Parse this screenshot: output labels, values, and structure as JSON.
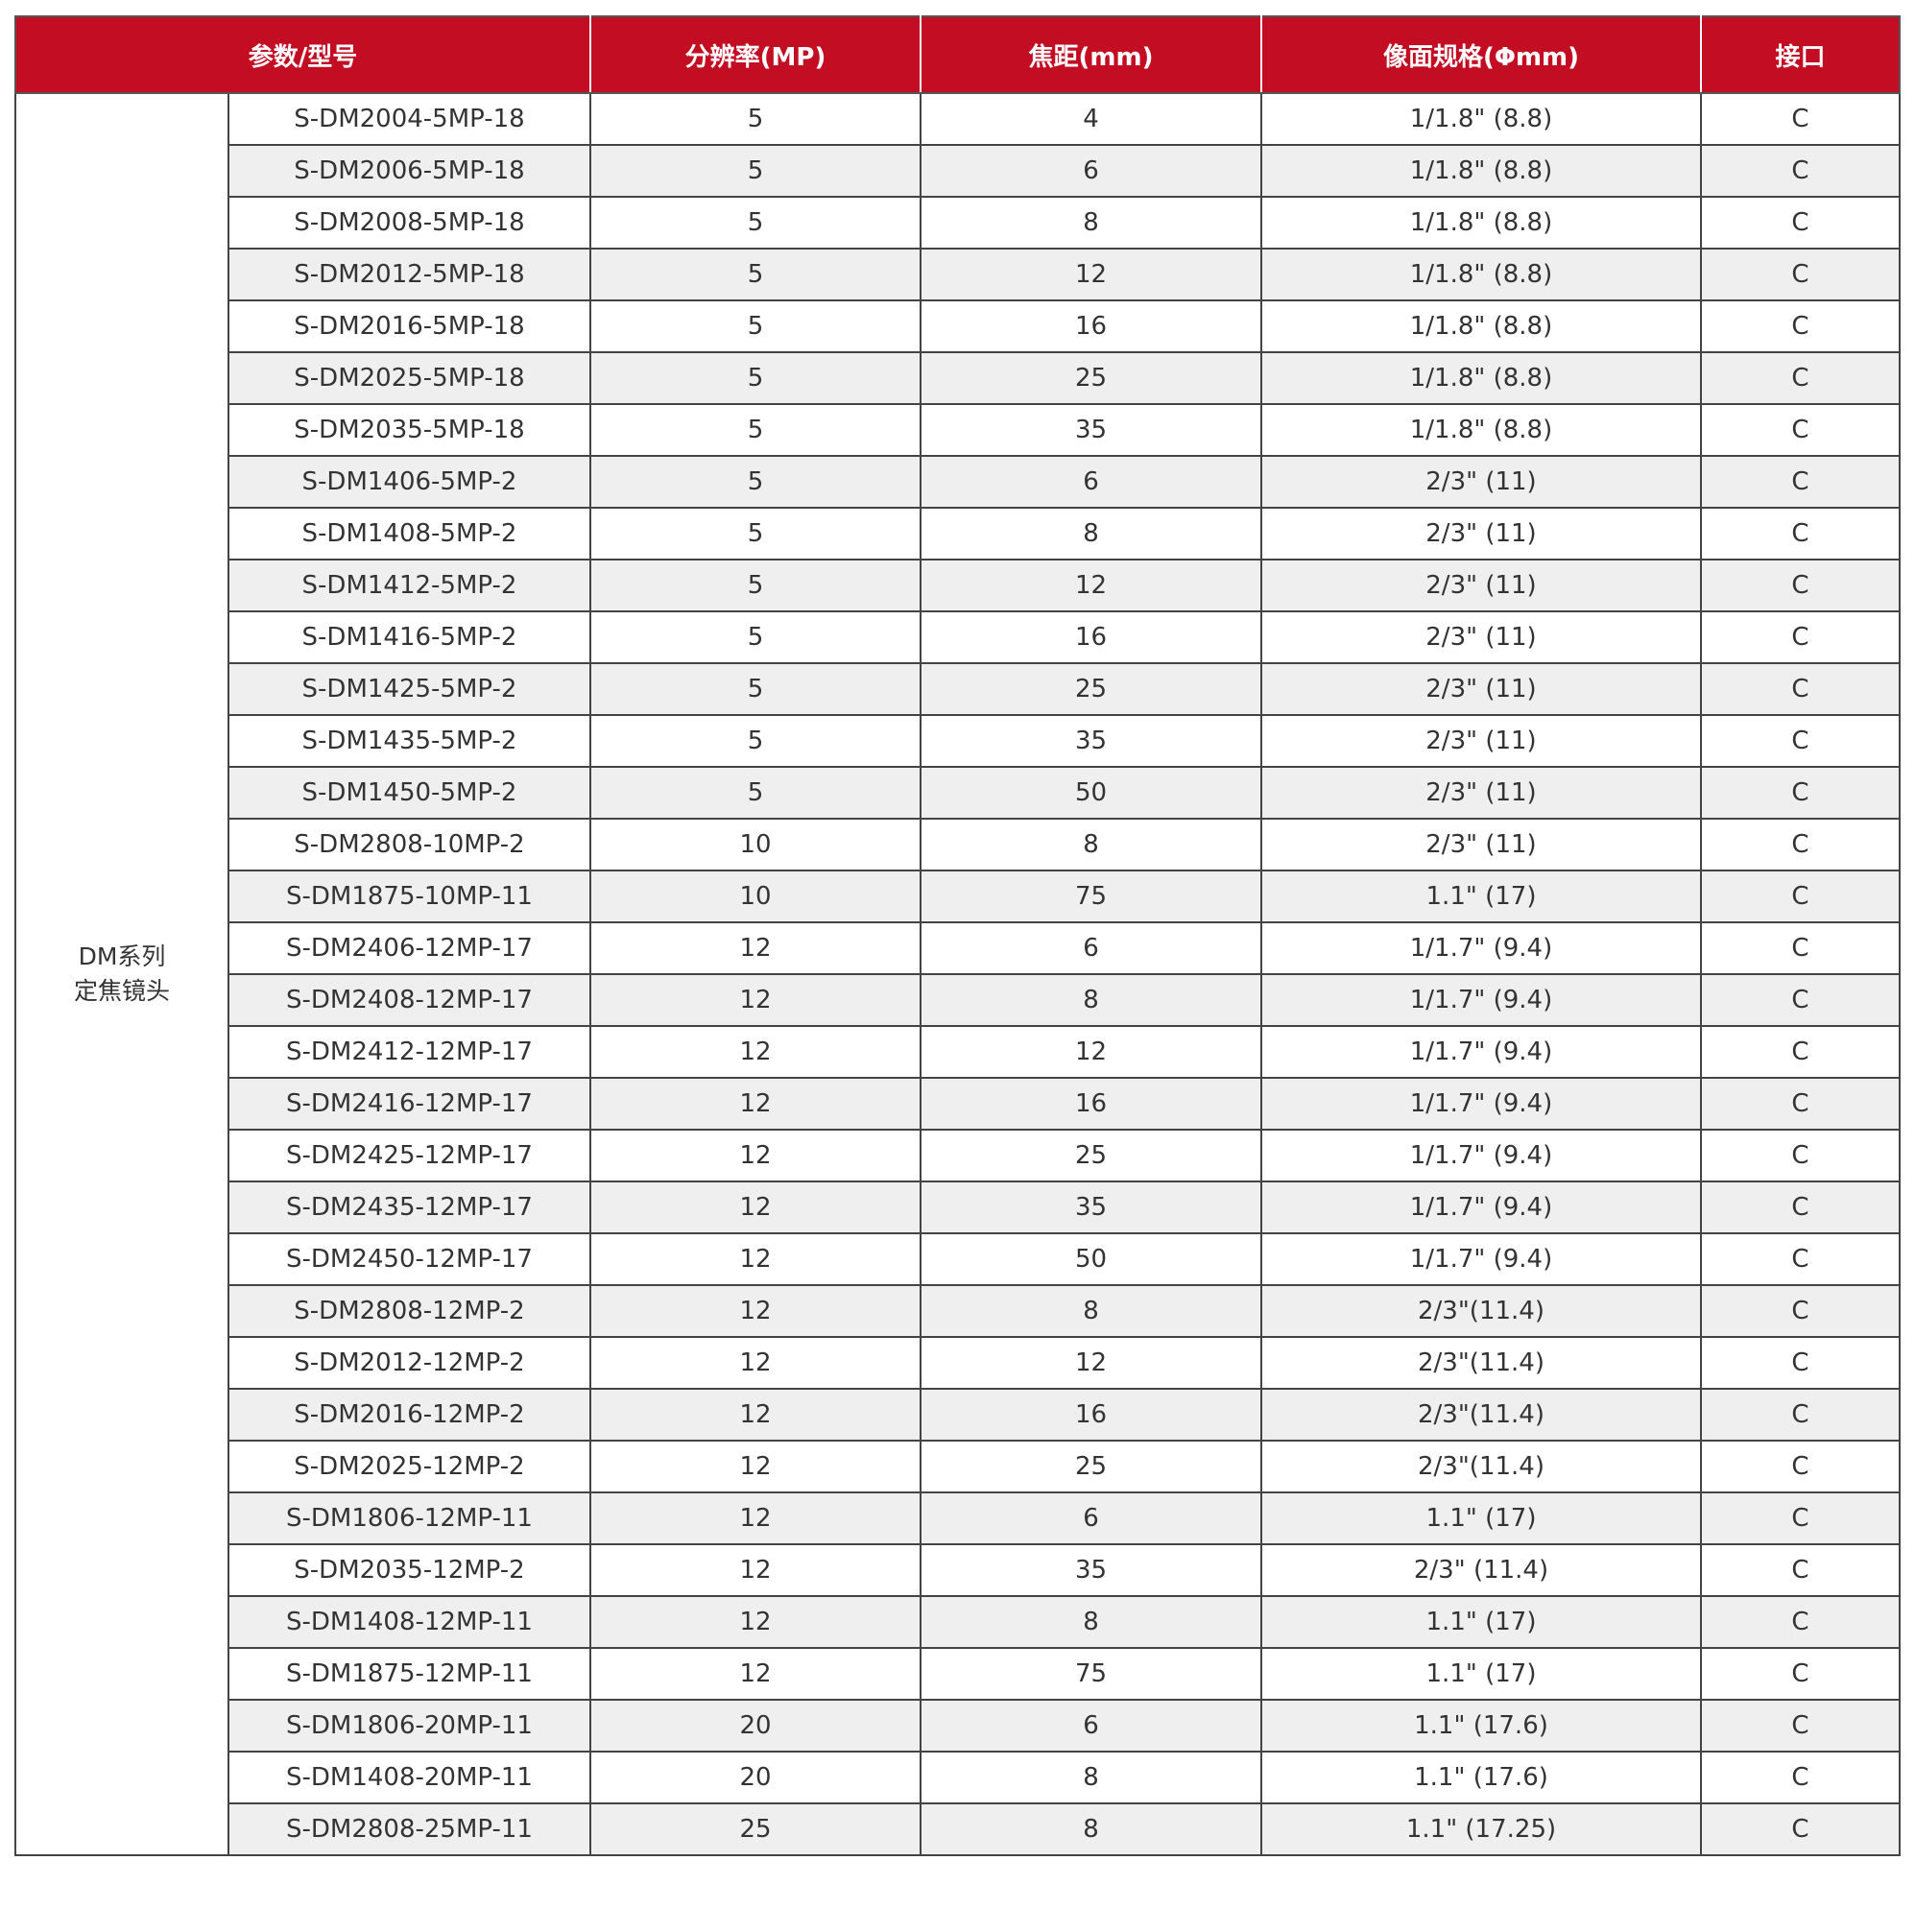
{
  "colors": {
    "header_bg": "#c30d23",
    "stripe": "#efefef"
  },
  "headers": [
    "参数/型号",
    "分辨率(MP)",
    "焦距(mm)",
    "像面规格(Φmm)",
    "接口"
  ],
  "series_label_line1": "DM系列",
  "series_label_line2": "定焦镜头",
  "rows": [
    [
      "S-DM2004-5MP-18",
      "5",
      "4",
      "1/1.8\" (8.8)",
      "C"
    ],
    [
      "S-DM2006-5MP-18",
      "5",
      "6",
      "1/1.8\" (8.8)",
      "C"
    ],
    [
      "S-DM2008-5MP-18",
      "5",
      "8",
      "1/1.8\" (8.8)",
      "C"
    ],
    [
      "S-DM2012-5MP-18",
      "5",
      "12",
      "1/1.8\" (8.8)",
      "C"
    ],
    [
      "S-DM2016-5MP-18",
      "5",
      "16",
      "1/1.8\" (8.8)",
      "C"
    ],
    [
      "S-DM2025-5MP-18",
      "5",
      "25",
      "1/1.8\" (8.8)",
      "C"
    ],
    [
      "S-DM2035-5MP-18",
      "5",
      "35",
      "1/1.8\" (8.8)",
      "C"
    ],
    [
      "S-DM1406-5MP-2",
      "5",
      "6",
      "2/3\" (11)",
      "C"
    ],
    [
      "S-DM1408-5MP-2",
      "5",
      "8",
      "2/3\" (11)",
      "C"
    ],
    [
      "S-DM1412-5MP-2",
      "5",
      "12",
      "2/3\" (11)",
      "C"
    ],
    [
      "S-DM1416-5MP-2",
      "5",
      "16",
      "2/3\" (11)",
      "C"
    ],
    [
      "S-DM1425-5MP-2",
      "5",
      "25",
      "2/3\" (11)",
      "C"
    ],
    [
      "S-DM1435-5MP-2",
      "5",
      "35",
      "2/3\" (11)",
      "C"
    ],
    [
      "S-DM1450-5MP-2",
      "5",
      "50",
      "2/3\" (11)",
      "C"
    ],
    [
      "S-DM2808-10MP-2",
      "10",
      "8",
      "2/3\" (11)",
      "C"
    ],
    [
      "S-DM1875-10MP-11",
      "10",
      "75",
      "1.1\" (17)",
      "C"
    ],
    [
      "S-DM2406-12MP-17",
      "12",
      "6",
      "1/1.7\" (9.4)",
      "C"
    ],
    [
      "S-DM2408-12MP-17",
      "12",
      "8",
      "1/1.7\" (9.4)",
      "C"
    ],
    [
      "S-DM2412-12MP-17",
      "12",
      "12",
      "1/1.7\" (9.4)",
      "C"
    ],
    [
      "S-DM2416-12MP-17",
      "12",
      "16",
      "1/1.7\" (9.4)",
      "C"
    ],
    [
      "S-DM2425-12MP-17",
      "12",
      "25",
      "1/1.7\" (9.4)",
      "C"
    ],
    [
      "S-DM2435-12MP-17",
      "12",
      "35",
      "1/1.7\" (9.4)",
      "C"
    ],
    [
      "S-DM2450-12MP-17",
      "12",
      "50",
      "1/1.7\" (9.4)",
      "C"
    ],
    [
      "S-DM2808-12MP-2",
      "12",
      "8",
      "2/3\"(11.4)",
      "C"
    ],
    [
      "S-DM2012-12MP-2",
      "12",
      "12",
      "2/3\"(11.4)",
      "C"
    ],
    [
      "S-DM2016-12MP-2",
      "12",
      "16",
      "2/3\"(11.4)",
      "C"
    ],
    [
      "S-DM2025-12MP-2",
      "12",
      "25",
      "2/3\"(11.4)",
      "C"
    ],
    [
      "S-DM1806-12MP-11",
      "12",
      "6",
      "1.1\" (17)",
      "C"
    ],
    [
      "S-DM2035-12MP-2",
      "12",
      "35",
      "2/3\" (11.4)",
      "C"
    ],
    [
      "S-DM1408-12MP-11",
      "12",
      "8",
      "1.1\" (17)",
      "C"
    ],
    [
      "S-DM1875-12MP-11",
      "12",
      "75",
      "1.1\" (17)",
      "C"
    ],
    [
      "S-DM1806-20MP-11",
      "20",
      "6",
      "1.1\" (17.6)",
      "C"
    ],
    [
      "S-DM1408-20MP-11",
      "20",
      "8",
      "1.1\" (17.6)",
      "C"
    ],
    [
      "S-DM2808-25MP-11",
      "25",
      "8",
      "1.1\" (17.25)",
      "C"
    ]
  ]
}
